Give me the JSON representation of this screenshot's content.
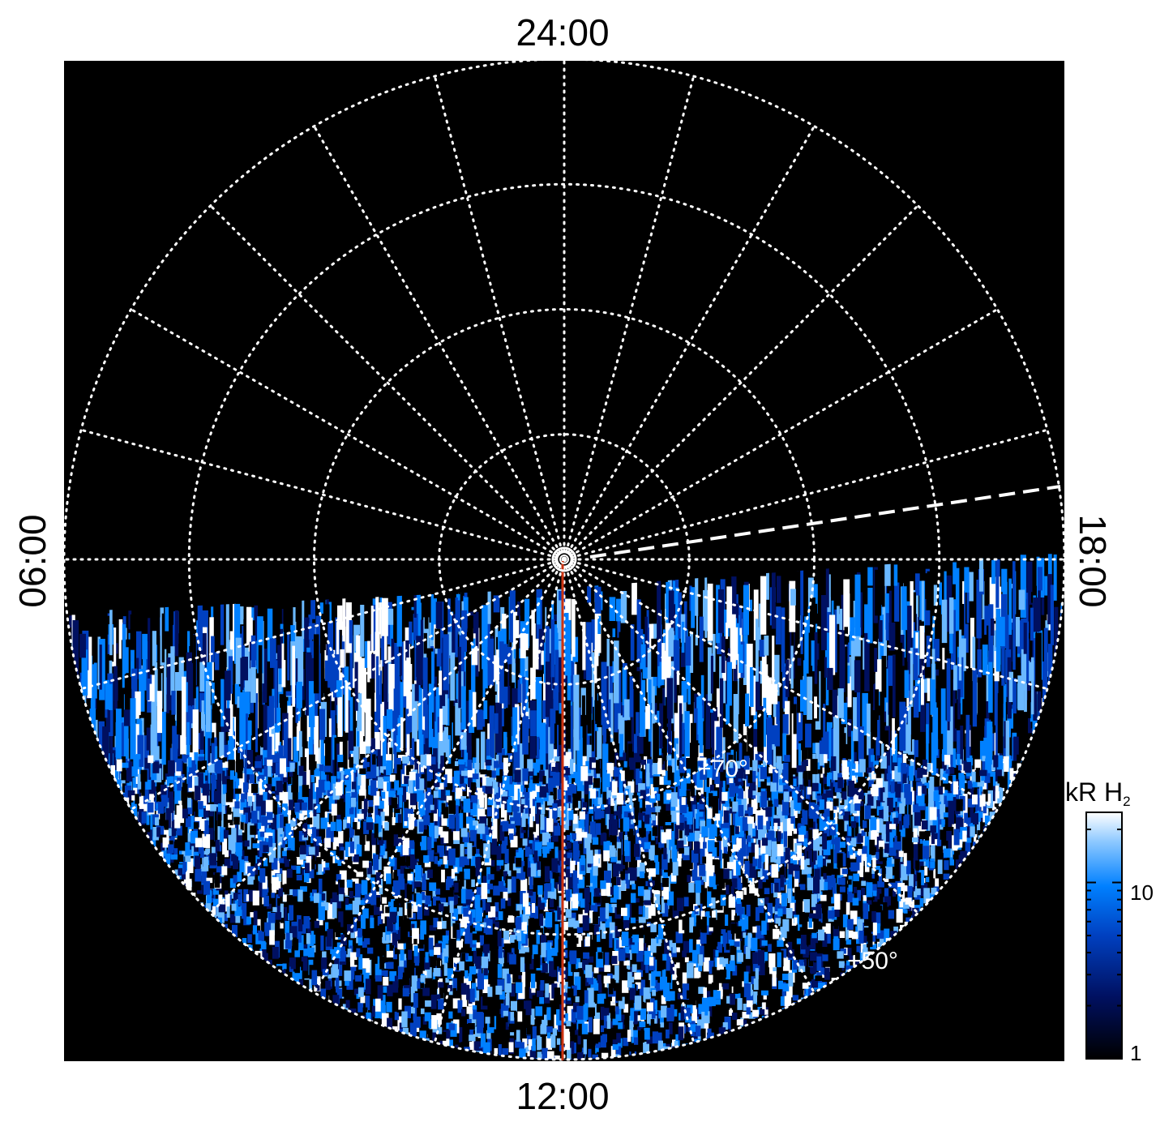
{
  "projection": {
    "type": "polar",
    "hemisphere": "north",
    "lat_circles_deg": [
      90,
      80,
      70,
      60,
      50
    ],
    "lon_spokes_count": 24,
    "local_time_labels": {
      "top": "24:00",
      "bottom": "12:00",
      "left": "06:00",
      "right": "18:00"
    },
    "lat_labels": [
      {
        "lat": 70,
        "text": "+70°"
      },
      {
        "lat": 50,
        "text": "+50°"
      }
    ],
    "noon_meridian_color": "#cc3311",
    "dashed_line_lt": "17:30"
  },
  "emission_map": {
    "visible_region": "dayside (lower half) and dusk edge",
    "colors": [
      "#000000",
      "#001060",
      "#0040c0",
      "#0080ff",
      "#6ab8ff",
      "#ffffff"
    ]
  },
  "colorbar": {
    "title": "kR H",
    "title_subscript": "2",
    "scale": "log",
    "range": [
      1,
      25
    ],
    "tick_labels": [
      "10",
      "1"
    ],
    "tick_values": [
      10,
      1
    ]
  }
}
